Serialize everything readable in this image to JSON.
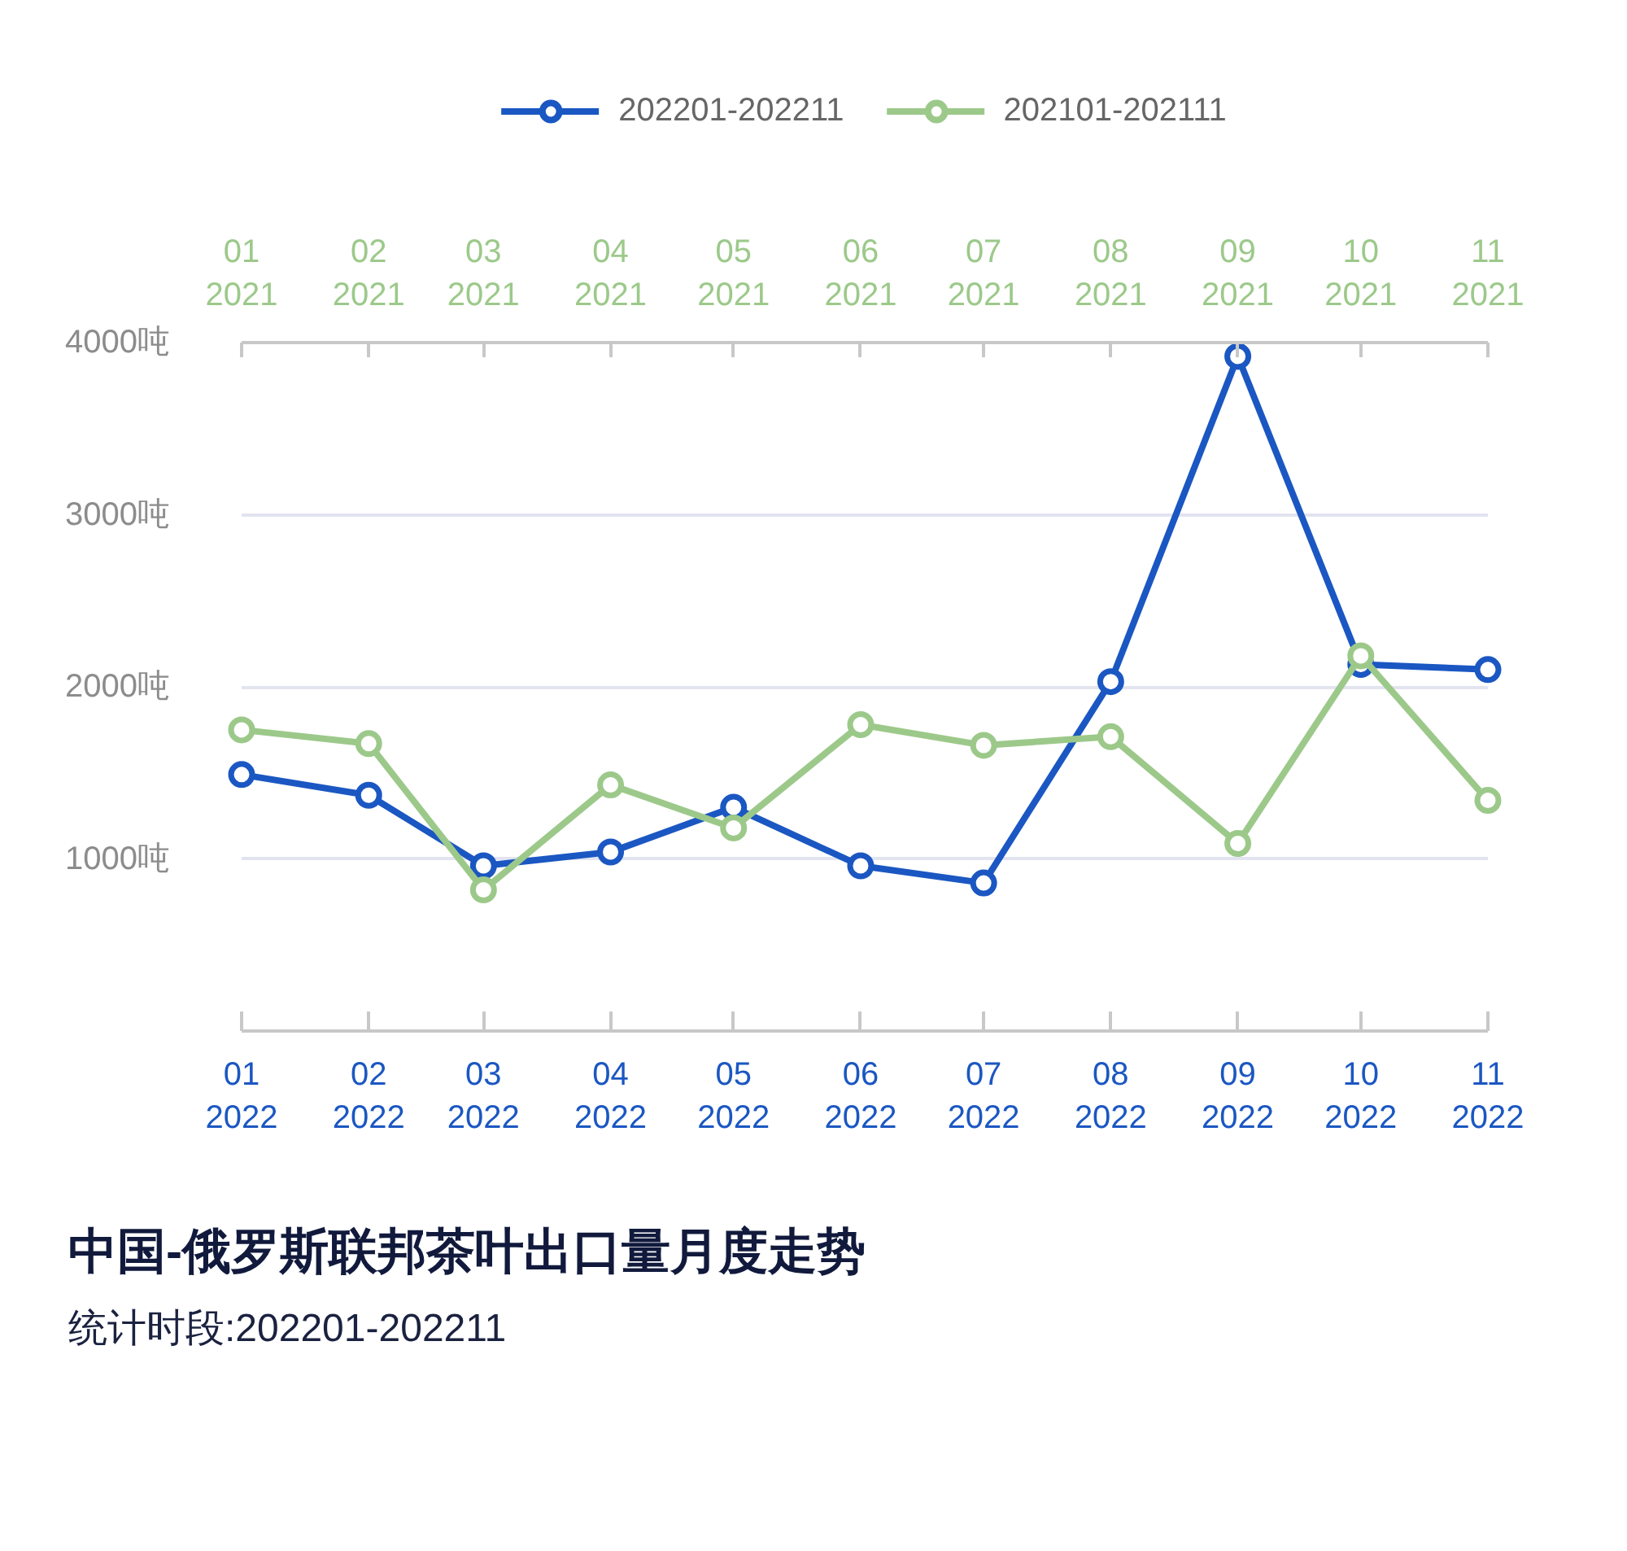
{
  "chart_data": {
    "type": "line",
    "title": "中国-俄罗斯联邦茶叶出口量月度走势",
    "subtitle": "统计时段:202201-202211",
    "x": [
      "2022-01",
      "2022-02",
      "2022-03",
      "2022-04",
      "2022-05",
      "2022-06",
      "2022-07",
      "2022-08",
      "2022-09",
      "2022-10",
      "2022-11"
    ],
    "xlim": [
      "2022-01",
      "2022-11"
    ],
    "xticks": [
      {
        "value": "2022-01",
        "label": "01\n2022"
      },
      {
        "value": "2022-02",
        "label": "02\n2022"
      },
      {
        "value": "2022-03",
        "label": "03\n2022"
      },
      {
        "value": "2022-04",
        "label": "04\n2022"
      },
      {
        "value": "2022-05",
        "label": "05\n2022"
      },
      {
        "value": "2022-06",
        "label": "06\n2022"
      },
      {
        "value": "2022-07",
        "label": "07\n2022"
      },
      {
        "value": "2022-08",
        "label": "08\n2022"
      },
      {
        "value": "2022-09",
        "label": "09\n2022"
      },
      {
        "value": "2022-10",
        "label": "10\n2022"
      },
      {
        "value": "2022-11",
        "label": "11\n2022"
      }
    ],
    "x2lim": [
      "2021-01",
      "2021-11"
    ],
    "x2ticks": [
      {
        "value": "2021-01",
        "label": "01\n2021"
      },
      {
        "value": "2021-02",
        "label": "02\n2021"
      },
      {
        "value": "2021-03",
        "label": "03\n2021"
      },
      {
        "value": "2021-04",
        "label": "04\n2021"
      },
      {
        "value": "2021-05",
        "label": "05\n2021"
      },
      {
        "value": "2021-06",
        "label": "06\n2021"
      },
      {
        "value": "2021-07",
        "label": "07\n2021"
      },
      {
        "value": "2021-08",
        "label": "08\n2021"
      },
      {
        "value": "2021-09",
        "label": "09\n2021"
      },
      {
        "value": "2021-10",
        "label": "10\n2021"
      },
      {
        "value": "2021-11",
        "label": "11\n2021"
      }
    ],
    "ylim": [
      0,
      4000
    ],
    "yticks": [
      {
        "value": 1000,
        "label": "1000吨"
      },
      {
        "value": 2000,
        "label": "2000吨"
      },
      {
        "value": 3000,
        "label": "3000吨"
      },
      {
        "value": 4000,
        "label": "4000吨"
      }
    ],
    "series": [
      {
        "name": "202201-202211",
        "color": "#1b57c2",
        "values": [
          1490,
          1370,
          960,
          1040,
          1300,
          960,
          860,
          2030,
          3920,
          2130,
          2100
        ]
      },
      {
        "name": "202101-202111",
        "color": "#9cc98a",
        "axis": "x2",
        "x": [
          "2021-01",
          "2021-02",
          "2021-03",
          "2021-04",
          "2021-05",
          "2021-06",
          "2021-07",
          "2021-08",
          "2021-09",
          "2021-10",
          "2021-11"
        ],
        "values": [
          1750,
          1670,
          820,
          1430,
          1180,
          1780,
          1660,
          1710,
          1090,
          2180,
          1340
        ]
      }
    ],
    "grid": "y",
    "legend": "top",
    "marker": "circle",
    "line_style": "solid"
  }
}
